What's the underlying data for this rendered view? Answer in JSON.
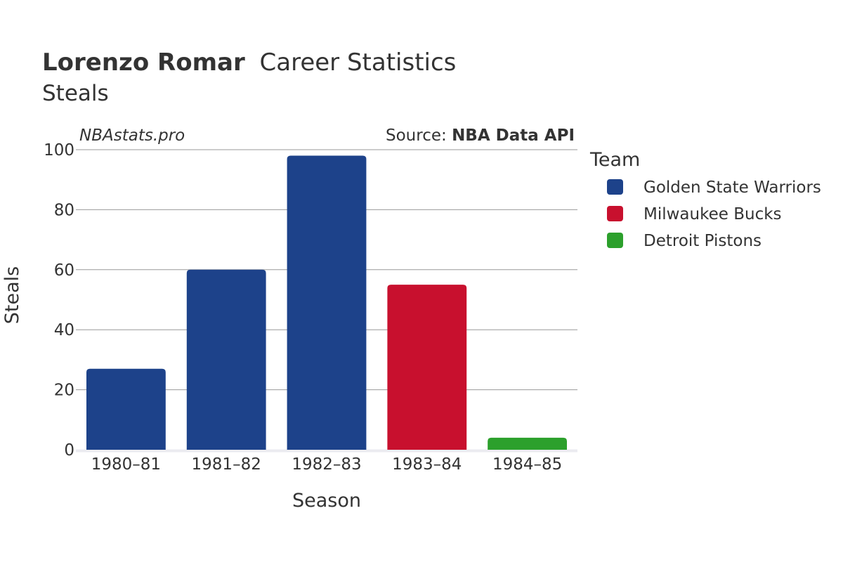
{
  "chart_data": {
    "type": "bar",
    "title": {
      "player": "Lorenzo Romar",
      "rest": "Career Statistics",
      "subtitle": "Steals"
    },
    "watermark": "NBAstats.pro",
    "source": {
      "prefix": "Source: ",
      "name": "NBA Data API"
    },
    "xlabel": "Season",
    "ylabel": "Steals",
    "ylim": [
      0,
      100
    ],
    "yticks": [
      0,
      20,
      40,
      60,
      80,
      100
    ],
    "grid": true,
    "legend": {
      "title": "Team",
      "placement": "right",
      "entries": [
        {
          "name": "Golden State Warriors",
          "color": "#1d428a"
        },
        {
          "name": "Milwaukee Bucks",
          "color": "#c8102e"
        },
        {
          "name": "Detroit Pistons",
          "color": "#2ca02c"
        }
      ]
    },
    "categories": [
      "1980–81",
      "1981–82",
      "1982–83",
      "1983–84",
      "1984–85"
    ],
    "values": [
      27,
      60,
      98,
      55,
      4
    ],
    "bar_teams": [
      "Golden State Warriors",
      "Golden State Warriors",
      "Golden State Warriors",
      "Milwaukee Bucks",
      "Detroit Pistons"
    ]
  }
}
